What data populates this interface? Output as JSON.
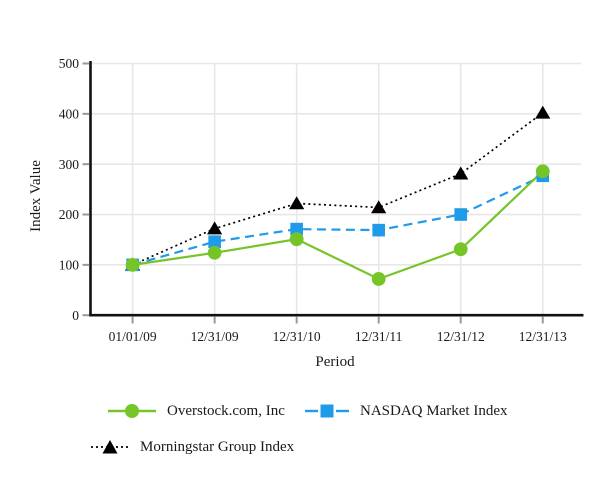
{
  "chart_data": {
    "type": "line",
    "title": "",
    "xlabel": "Period",
    "ylabel": "Index Value",
    "categories": [
      "01/01/09",
      "12/31/09",
      "12/31/10",
      "12/31/11",
      "12/31/12",
      "12/31/13"
    ],
    "ylim": [
      0,
      500
    ],
    "yticks": [
      0,
      100,
      200,
      300,
      400,
      500
    ],
    "grid": true,
    "legend_position": "bottom",
    "series": [
      {
        "name": "Overstock.com, Inc",
        "values": [
          100,
          124,
          151,
          72,
          131,
          286
        ],
        "color": "#76C528",
        "marker": "circle",
        "line_style": "solid"
      },
      {
        "name": "NASDAQ Market Index",
        "values": [
          100,
          146,
          171,
          169,
          200,
          277
        ],
        "color": "#209BE9",
        "marker": "square",
        "line_style": "dashed"
      },
      {
        "name": "Morningstar Group Index",
        "values": [
          100,
          172,
          222,
          214,
          281,
          402
        ],
        "color": "#000000",
        "marker": "triangle",
        "line_style": "dotted"
      }
    ]
  }
}
